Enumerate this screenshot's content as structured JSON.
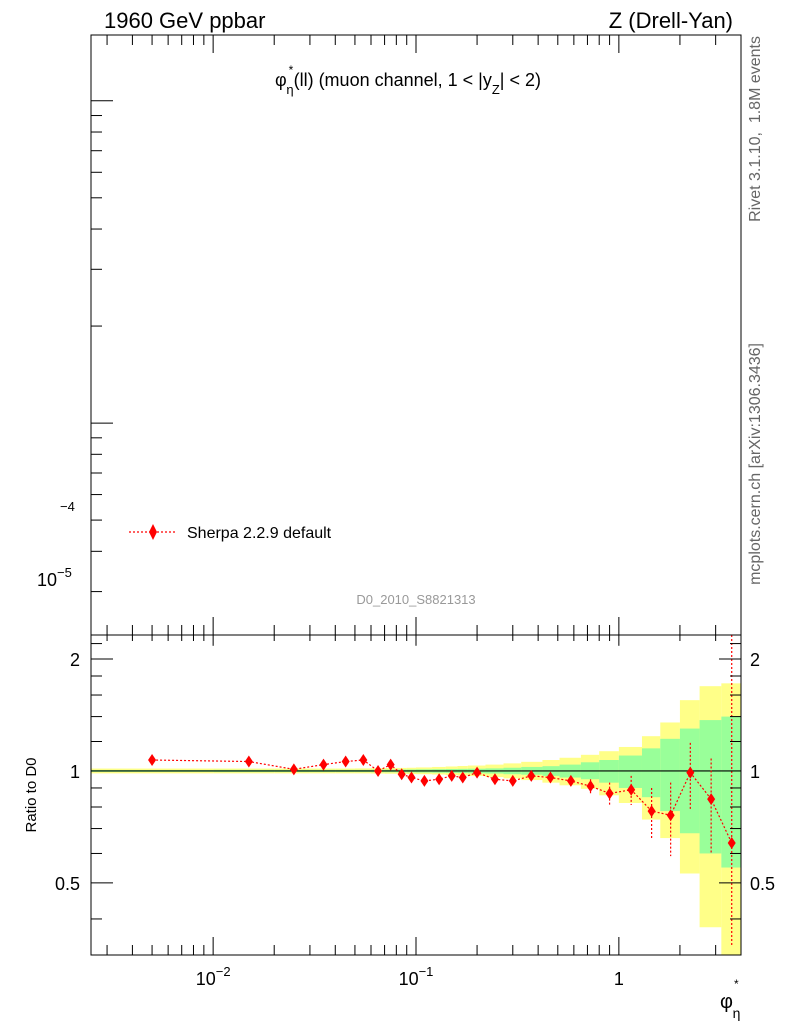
{
  "header": {
    "left": "1960 GeV ppbar",
    "right": "Z (Drell-Yan)"
  },
  "side": {
    "rivet": "Rivet 3.1.10,  1.8M events",
    "source": "mcplots.cern.ch [arXiv:1306.3436]"
  },
  "colors": {
    "mc": "#ff0000",
    "band_inner": "#99ff99",
    "band_outer": "#ffff88",
    "ref_line": "#000000"
  },
  "chart_data": [
    {
      "type": "line",
      "panel": "main",
      "title": {
        "phi": "φ",
        "sup": "*",
        "sub": "η",
        "rest": "(ll) (muon channel, 1 < |y",
        "sub2": "Z",
        "end": "| < 2)"
      },
      "analysis": "D0_2010_S8821313",
      "x_scale": "log",
      "y_scale": "log",
      "xlim": [
        0.0025,
        4.0
      ],
      "ylim": [
        2.2e-06,
        0.00016
      ],
      "y_ticklabels": {
        "e5": "10",
        "e5_exp": "−5",
        "e4_exp": "−4"
      },
      "legend": {
        "position": "left",
        "label": "Sherpa 2.2.9 default"
      },
      "series": [
        {
          "name": "Sherpa 2.2.9 default",
          "x": [],
          "y": []
        }
      ]
    },
    {
      "type": "line",
      "panel": "ratio",
      "ylabel": "Ratio to D0",
      "xlabel": {
        "phi": "φ",
        "sup": "*",
        "sub": "η"
      },
      "x_scale": "log",
      "xlim": [
        0.0025,
        4.0
      ],
      "ylim": [
        0.32,
        2.32
      ],
      "y_ticklabels": [
        "0.5",
        "1",
        "2"
      ],
      "x_ticklabels": [
        {
          "base": "10",
          "exp": "−2"
        },
        {
          "base": "10",
          "exp": "−1"
        },
        {
          "base": "1",
          "exp": ""
        }
      ],
      "ref_line": 1.0,
      "bands": {
        "x_edges": [
          0.0025,
          0.01,
          0.02,
          0.03,
          0.04,
          0.05,
          0.06,
          0.07,
          0.08,
          0.09,
          0.1,
          0.12,
          0.14,
          0.16,
          0.18,
          0.22,
          0.27,
          0.33,
          0.42,
          0.51,
          0.65,
          0.8,
          1.0,
          1.3,
          1.6,
          2.0,
          2.5,
          3.2,
          4.0
        ],
        "inner_lo": [
          0.994,
          0.993,
          0.993,
          0.993,
          0.993,
          0.993,
          0.992,
          0.992,
          0.991,
          0.991,
          0.99,
          0.989,
          0.988,
          0.987,
          0.986,
          0.984,
          0.98,
          0.977,
          0.97,
          0.96,
          0.95,
          0.93,
          0.9,
          0.85,
          0.78,
          0.68,
          0.6,
          0.55
        ],
        "inner_hi": [
          1.006,
          1.007,
          1.007,
          1.007,
          1.007,
          1.007,
          1.008,
          1.008,
          1.009,
          1.009,
          1.01,
          1.011,
          1.012,
          1.013,
          1.014,
          1.016,
          1.02,
          1.025,
          1.03,
          1.04,
          1.055,
          1.07,
          1.1,
          1.15,
          1.22,
          1.3,
          1.37,
          1.4
        ],
        "outer_lo": [
          0.985,
          0.985,
          0.985,
          0.985,
          0.985,
          0.985,
          0.984,
          0.983,
          0.982,
          0.981,
          0.98,
          0.978,
          0.975,
          0.972,
          0.969,
          0.963,
          0.955,
          0.945,
          0.93,
          0.915,
          0.895,
          0.86,
          0.82,
          0.74,
          0.66,
          0.53,
          0.38,
          0.3
        ],
        "outer_hi": [
          1.015,
          1.015,
          1.015,
          1.015,
          1.015,
          1.016,
          1.017,
          1.018,
          1.019,
          1.02,
          1.022,
          1.025,
          1.028,
          1.031,
          1.034,
          1.04,
          1.048,
          1.058,
          1.07,
          1.085,
          1.105,
          1.13,
          1.16,
          1.24,
          1.35,
          1.55,
          1.69,
          1.72
        ]
      },
      "series": [
        {
          "name": "Sherpa 2.2.9 default",
          "x": [
            0.005,
            0.015,
            0.025,
            0.035,
            0.045,
            0.055,
            0.065,
            0.075,
            0.085,
            0.095,
            0.11,
            0.13,
            0.15,
            0.17,
            0.2,
            0.245,
            0.3,
            0.37,
            0.46,
            0.58,
            0.725,
            0.9,
            1.15,
            1.45,
            1.8,
            2.25,
            2.85,
            3.6
          ],
          "y": [
            1.07,
            1.06,
            1.01,
            1.04,
            1.06,
            1.07,
            1.0,
            1.04,
            0.98,
            0.96,
            0.94,
            0.95,
            0.97,
            0.96,
            0.99,
            0.95,
            0.94,
            0.97,
            0.96,
            0.94,
            0.91,
            0.87,
            0.89,
            0.78,
            0.76,
            0.99,
            0.84,
            0.64
          ],
          "err_lo": [
            0.01,
            0.01,
            0.01,
            0.01,
            0.01,
            0.01,
            0.01,
            0.01,
            0.01,
            0.01,
            0.01,
            0.01,
            0.01,
            0.01,
            0.01,
            0.02,
            0.02,
            0.02,
            0.03,
            0.03,
            0.04,
            0.06,
            0.08,
            0.12,
            0.17,
            0.2,
            0.24,
            0.3
          ],
          "err_hi": [
            0.01,
            0.01,
            0.01,
            0.01,
            0.01,
            0.01,
            0.01,
            0.01,
            0.01,
            0.01,
            0.01,
            0.01,
            0.01,
            0.01,
            0.01,
            0.02,
            0.02,
            0.02,
            0.03,
            0.03,
            0.04,
            0.06,
            0.08,
            0.12,
            0.17,
            0.2,
            0.24,
            2.0
          ]
        }
      ]
    }
  ]
}
